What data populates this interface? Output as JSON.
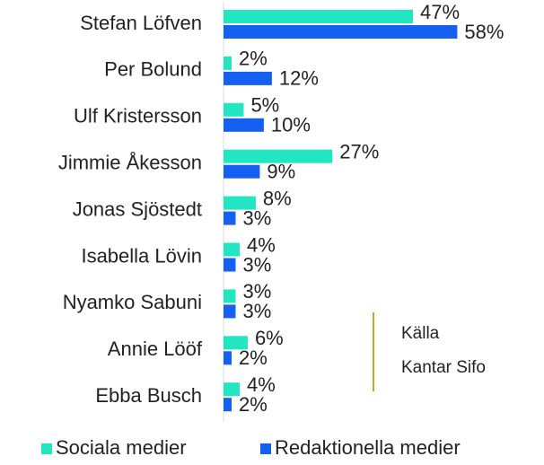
{
  "chart_data": {
    "type": "bar",
    "orientation": "horizontal",
    "categories": [
      "Stefan Löfven",
      "Per Bolund",
      "Ulf Kristersson",
      "Jimmie Åkesson",
      "Jonas Sjöstedt",
      "Isabella Lövin",
      "Nyamko Sabuni",
      "Annie Lööf",
      "Ebba Busch"
    ],
    "series": [
      {
        "name": "Sociala medier",
        "color": "#21e6c1",
        "values": [
          47,
          2,
          5,
          27,
          8,
          4,
          3,
          6,
          4
        ],
        "value_labels": [
          "47%",
          "2%",
          "5%",
          "27%",
          "8%",
          "4%",
          "3%",
          "6%",
          "4%"
        ]
      },
      {
        "name": "Redaktionella medier",
        "color": "#1560f0",
        "values": [
          58,
          12,
          10,
          9,
          3,
          3,
          3,
          2,
          2
        ],
        "value_labels": [
          "58%",
          "12%",
          "10%",
          "9%",
          "3%",
          "3%",
          "3%",
          "2%",
          "2%"
        ]
      }
    ],
    "annotation": [
      "Källa",
      "Kantar Sifo"
    ],
    "legend": "bottom"
  }
}
